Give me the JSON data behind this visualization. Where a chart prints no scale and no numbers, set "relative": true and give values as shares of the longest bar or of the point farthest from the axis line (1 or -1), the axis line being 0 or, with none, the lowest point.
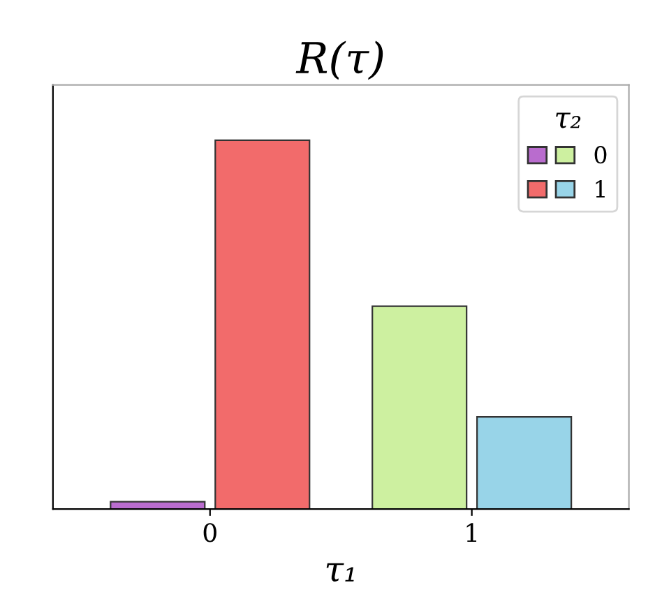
{
  "chart_data": {
    "type": "bar",
    "title": "R(τ)",
    "xlabel": "τ₁",
    "legend_title": "τ₂",
    "relative": true,
    "categories": [
      "0",
      "1"
    ],
    "series": [
      {
        "name": "0",
        "colors": [
          "#b96cce",
          "#cdf0a0"
        ],
        "values": [
          0.02,
          0.55
        ]
      },
      {
        "name": "1",
        "colors": [
          "#f26b6b",
          "#98d4e8"
        ],
        "values": [
          1,
          0.25
        ]
      }
    ],
    "legend": "top right",
    "grid": false
  }
}
